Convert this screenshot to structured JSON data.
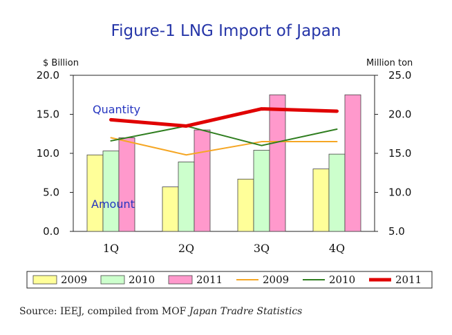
{
  "chart_data": {
    "type": "bar",
    "title": "Figure-1 LNG Import of Japan",
    "left_axis_label": "$ Billion",
    "right_axis_label": "Million ton",
    "categories": [
      "1Q",
      "2Q",
      "3Q",
      "4Q"
    ],
    "ylim_left": [
      0,
      20
    ],
    "yticks_left": [
      "0.0",
      "5.0",
      "10.0",
      "15.0",
      "20.0"
    ],
    "ylim_right": [
      5,
      25
    ],
    "yticks_right": [
      "5.0",
      "10.0",
      "15.0",
      "20.0",
      "25.0"
    ],
    "bar_series": [
      {
        "name": "2009",
        "color": "#ffff99",
        "values": [
          9.8,
          5.7,
          6.7,
          8.0
        ]
      },
      {
        "name": "2010",
        "color": "#ccffcc",
        "values": [
          10.3,
          8.9,
          10.4,
          9.9
        ]
      },
      {
        "name": "2011",
        "color": "#ff99cc",
        "values": [
          12.0,
          13.0,
          17.5,
          17.5
        ]
      }
    ],
    "line_series": [
      {
        "name": "2009",
        "color": "#f5a623",
        "width": 2,
        "values": [
          17.0,
          14.8,
          16.5,
          16.5
        ]
      },
      {
        "name": "2010",
        "color": "#2e7d1e",
        "width": 2,
        "values": [
          16.6,
          18.5,
          16.0,
          18.1
        ]
      },
      {
        "name": "2011",
        "color": "#e00000",
        "width": 5,
        "values": [
          19.3,
          18.5,
          20.7,
          20.4
        ]
      }
    ],
    "annotations": {
      "quantity": "Quantity",
      "amount": "Amount"
    },
    "legend_position": "bottom",
    "grid": false
  },
  "source": {
    "prefix": "Source: IEEJ, compiled from MOF ",
    "italic": "Japan Tradre Statistics"
  }
}
